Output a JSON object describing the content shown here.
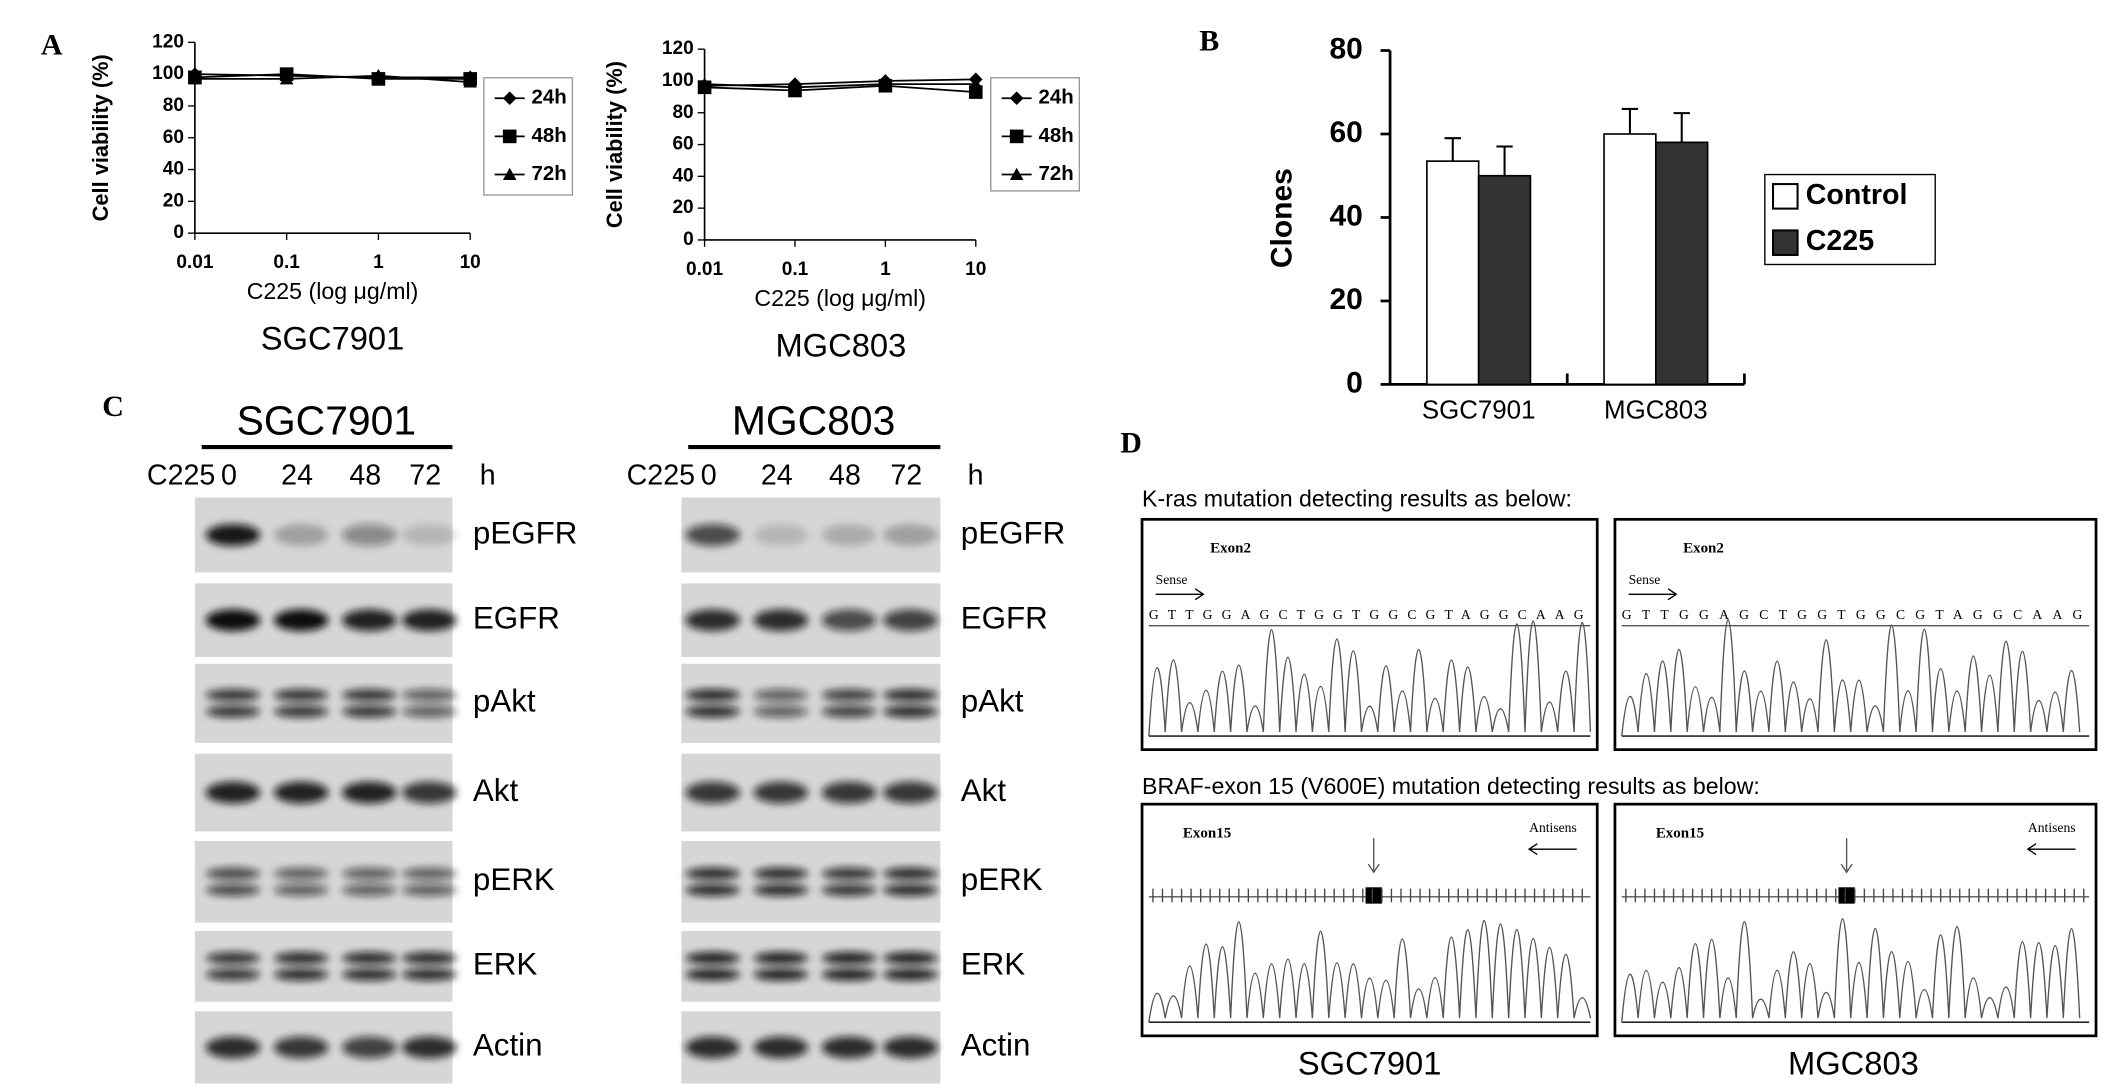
{
  "panel_labels": [
    "A",
    "B",
    "C",
    "D"
  ],
  "chart_data": [
    {
      "type": "line",
      "title": "SGC7901",
      "x_label": "C225 (log μg/ml)",
      "y_label": "Cell viability (%)",
      "x": [
        0.01,
        0.1,
        1,
        10
      ],
      "xscale": "log",
      "xlim": [
        0.01,
        10
      ],
      "xticks": [
        0.01,
        0.1,
        1,
        10
      ],
      "ylim": [
        0,
        120
      ],
      "yticks": [
        0,
        20,
        40,
        60,
        80,
        100,
        120
      ],
      "series": [
        {
          "name": "24h",
          "color": "#000000",
          "marker": "diamond",
          "values": [
            100,
            99,
            98,
            98
          ]
        },
        {
          "name": "48h",
          "color": "#000000",
          "marker": "square",
          "values": [
            98,
            100,
            97,
            97
          ]
        },
        {
          "name": "72h",
          "color": "#000000",
          "marker": "triangle",
          "values": [
            97,
            97,
            99,
            95
          ]
        }
      ]
    },
    {
      "type": "line",
      "title": "MGC803",
      "x_label": "C225 (log μg/ml)",
      "y_label": "Cell viability (%)",
      "x": [
        0.01,
        0.1,
        1,
        10
      ],
      "xscale": "log",
      "xlim": [
        0.01,
        10
      ],
      "xticks": [
        0.01,
        0.1,
        1,
        10
      ],
      "ylim": [
        0,
        120
      ],
      "yticks": [
        0,
        20,
        40,
        60,
        80,
        100,
        120
      ],
      "series": [
        {
          "name": "24h",
          "color": "#000000",
          "marker": "diamond",
          "values": [
            97,
            98,
            100,
            101
          ]
        },
        {
          "name": "48h",
          "color": "#000000",
          "marker": "square",
          "values": [
            96,
            94,
            97,
            93
          ]
        },
        {
          "name": "72h",
          "color": "#000000",
          "marker": "triangle",
          "values": [
            98,
            96,
            98,
            98
          ]
        }
      ]
    },
    {
      "type": "bar",
      "y_label": "Clones",
      "categories": [
        "SGC7901",
        "MGC803"
      ],
      "ylim": [
        0,
        80
      ],
      "yticks": [
        0,
        20,
        40,
        60,
        80
      ],
      "series": [
        {
          "name": "Control",
          "color": "#ffffff",
          "values": [
            53.5,
            60
          ],
          "errors": [
            5.5,
            6
          ]
        },
        {
          "name": "C225",
          "color": "#333333",
          "values": [
            50,
            58
          ],
          "errors": [
            7,
            7
          ]
        }
      ]
    }
  ],
  "blots": {
    "treatment_label": "C225",
    "time_unit": "h",
    "times": [
      "0",
      "24",
      "48",
      "72"
    ],
    "cell_lines": [
      "SGC7901",
      "MGC803"
    ],
    "proteins": [
      "pEGFR",
      "EGFR",
      "pAkt",
      "Akt",
      "pERK",
      "ERK",
      "Actin"
    ]
  },
  "sequencing": {
    "kras_title": "K-ras mutation detecting results as below:",
    "braf_title": "BRAF-exon 15 (V600E) mutation detecting results as below:",
    "kras_exon": "Exon2",
    "kras_direction": "Sense",
    "kras_sequence": "GTTGGAGCTGGTGGCGTAGGCAAG",
    "braf_exon": "Exon15",
    "braf_direction": "Antisens",
    "cell_lines": [
      "SGC7901",
      "MGC803"
    ]
  }
}
